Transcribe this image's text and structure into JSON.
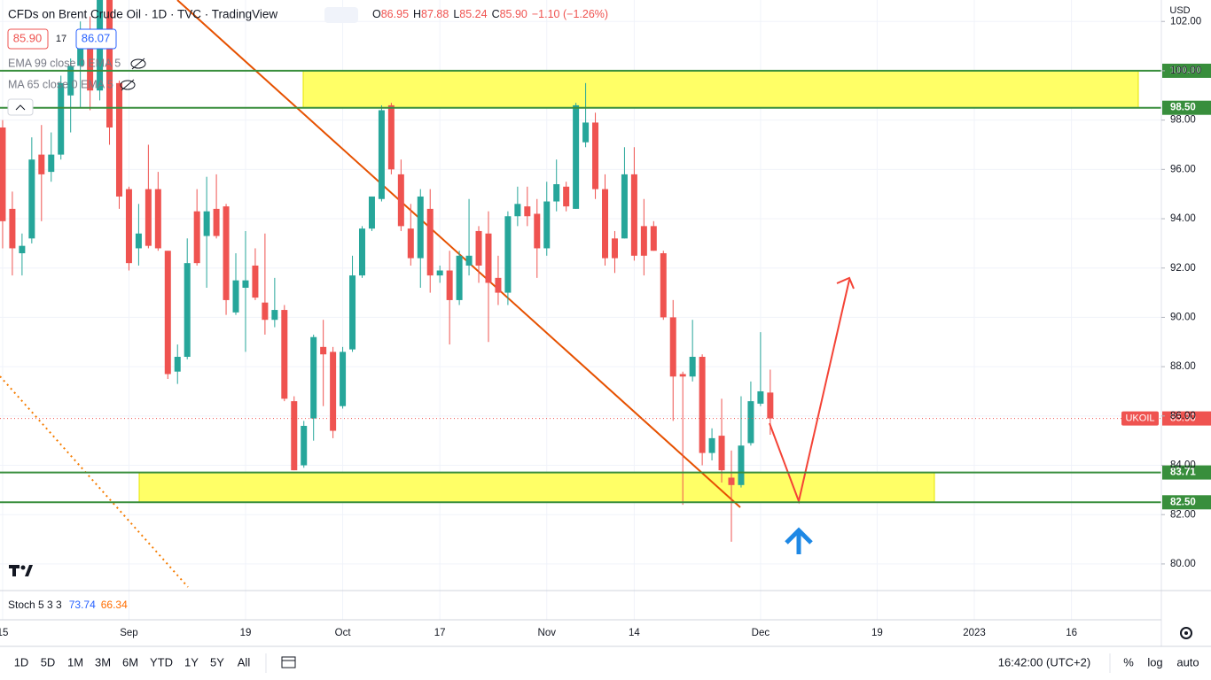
{
  "header": {
    "title": "CFDs on Brent Crude Oil · 1D · TVC · TradingView",
    "ohlc": [
      "O",
      "86.95",
      "H",
      "87.88",
      "L",
      "85.24",
      "C",
      "85.90",
      "−1.10 (−1.26%)"
    ],
    "bid": "85.90",
    "spread": "17",
    "ask": "86.07",
    "indicators": [
      "EMA 99 close 0 EMA 5",
      "MA 65 close 0 EMA 5"
    ],
    "currency": "USD"
  },
  "chart_data": {
    "type": "candlestick",
    "up_color": "#26a69a",
    "down_color": "#ef5350",
    "open": [
      97.7,
      94.4,
      92.6,
      93.2,
      96.6,
      95.9,
      96.6,
      99.0,
      100.2,
      101.5,
      99.2,
      103.0,
      99.5,
      95.2,
      92.8,
      95.2,
      95.2,
      92.7,
      87.8,
      88.4,
      94.3,
      93.3,
      94.4,
      94.5,
      90.2,
      91.2,
      92.1,
      90.6,
      89.9,
      90.3,
      86.6,
      84.0,
      85.9,
      88.8,
      88.6,
      86.4,
      88.7,
      91.7,
      93.6,
      94.8,
      98.6,
      95.8,
      93.6,
      92.4,
      94.4,
      91.7,
      91.9,
      90.7,
      92.1,
      93.5,
      93.4,
      91.6,
      91.0,
      94.1,
      94.5,
      94.2,
      92.8,
      94.7,
      95.3,
      94.4,
      97.1,
      97.9,
      95.2,
      93.2,
      93.2,
      95.8,
      93.7,
      93.7,
      92.6,
      90.0,
      87.7,
      87.6,
      88.4,
      84.5,
      85.2,
      83.5,
      83.2,
      84.9,
      86.5,
      86.95
    ],
    "high": [
      98.0,
      95.1,
      93.4,
      97.3,
      97.8,
      97.5,
      99.8,
      100.5,
      102.0,
      102.2,
      103.5,
      103.5,
      99.6,
      95.3,
      94.6,
      97.0,
      95.9,
      92.7,
      88.9,
      93.2,
      95.2,
      95.7,
      95.8,
      94.6,
      92.6,
      93.5,
      92.8,
      93.4,
      91.6,
      90.5,
      86.8,
      85.8,
      89.3,
      89.9,
      88.8,
      88.8,
      92.5,
      93.7,
      94.9,
      98.6,
      98.7,
      96.4,
      94.6,
      95.2,
      95.2,
      92.1,
      92.7,
      92.7,
      94.8,
      93.7,
      94.3,
      92.5,
      94.3,
      95.3,
      95.3,
      94.8,
      95.5,
      96.4,
      95.5,
      98.7,
      99.5,
      98.3,
      95.8,
      93.5,
      96.9,
      96.9,
      94.8,
      93.9,
      92.7,
      90.7,
      87.8,
      89.9,
      88.5,
      85.5,
      86.7,
      84.6,
      86.8,
      87.4,
      89.4,
      87.88
    ],
    "low": [
      92.8,
      91.7,
      91.7,
      93.0,
      93.9,
      95.5,
      96.4,
      97.5,
      98.5,
      98.4,
      98.8,
      97.0,
      94.4,
      91.9,
      92.1,
      92.8,
      92.7,
      87.5,
      87.3,
      88.3,
      92.1,
      91.2,
      93.2,
      90.1,
      90.1,
      88.6,
      90.7,
      89.3,
      89.6,
      86.6,
      83.8,
      83.9,
      85.0,
      86.4,
      85.1,
      86.3,
      88.6,
      91.6,
      93.5,
      94.7,
      95.8,
      93.5,
      92.1,
      91.2,
      91.0,
      91.4,
      88.9,
      90.5,
      91.7,
      91.4,
      89.0,
      90.5,
      90.5,
      93.7,
      93.7,
      91.6,
      92.5,
      94.3,
      94.3,
      94.4,
      96.9,
      94.8,
      92.1,
      91.8,
      93.2,
      92.3,
      91.7,
      92.7,
      89.9,
      85.8,
      82.4,
      87.4,
      84.0,
      84.2,
      83.3,
      80.9,
      83.1,
      84.8,
      86.4,
      85.24
    ],
    "close": [
      93.9,
      92.8,
      92.9,
      96.4,
      95.8,
      96.6,
      99.5,
      100.2,
      101.5,
      99.2,
      103.0,
      97.7,
      94.9,
      92.2,
      93.4,
      92.9,
      92.8,
      87.7,
      88.4,
      92.2,
      92.2,
      94.3,
      93.3,
      90.7,
      91.5,
      91.5,
      90.8,
      89.9,
      90.3,
      86.7,
      83.8,
      85.6,
      89.2,
      88.5,
      85.4,
      88.6,
      91.7,
      93.6,
      94.9,
      98.4,
      96.0,
      93.7,
      92.4,
      94.9,
      91.7,
      91.9,
      90.7,
      92.5,
      92.5,
      92.1,
      91.4,
      91.0,
      94.1,
      94.6,
      94.1,
      92.8,
      94.7,
      95.4,
      94.5,
      98.6,
      97.9,
      95.2,
      92.4,
      92.4,
      95.8,
      92.5,
      92.5,
      92.7,
      90.0,
      87.6,
      87.6,
      88.4,
      84.5,
      85.1,
      83.8,
      83.2,
      84.8,
      86.6,
      87.0,
      85.9
    ],
    "xlim": [
      -0.27,
      119.25
    ],
    "xticks": [
      {
        "value": 0,
        "label": "15"
      },
      {
        "value": 13,
        "label": "Sep"
      },
      {
        "value": 25,
        "label": "19"
      },
      {
        "value": 35,
        "label": "Oct"
      },
      {
        "value": 45,
        "label": "17"
      },
      {
        "value": 56,
        "label": "Nov"
      },
      {
        "value": 65,
        "label": "14"
      },
      {
        "value": 78,
        "label": "Dec"
      },
      {
        "value": 90,
        "label": "19"
      },
      {
        "value": 100,
        "label": "2023"
      },
      {
        "value": 110,
        "label": "16"
      }
    ],
    "ylim": [
      78.92,
      102.87
    ],
    "yticks": [
      {
        "value": 80,
        "label": "80.00"
      },
      {
        "value": 82,
        "label": "82.00"
      },
      {
        "value": 84,
        "label": "84.00"
      },
      {
        "value": 86,
        "label": "86.00"
      },
      {
        "value": 88,
        "label": "88.00"
      },
      {
        "value": 90,
        "label": "90.00"
      },
      {
        "value": 92,
        "label": "92.00"
      },
      {
        "value": 94,
        "label": "94.00"
      },
      {
        "value": 96,
        "label": "96.00"
      },
      {
        "value": 98,
        "label": "98.00"
      },
      {
        "value": 100,
        "label": "100.00"
      },
      {
        "value": 102,
        "label": "102.00"
      }
    ],
    "grid": true,
    "levels": [
      {
        "value": 100,
        "label": "100.00"
      },
      {
        "value": 98.5,
        "label": "98.50"
      },
      {
        "value": 83.71,
        "label": "83.71"
      },
      {
        "value": 82.5,
        "label": "82.50"
      }
    ],
    "level_color": "#388e3c",
    "zone_color": "#ffff66",
    "last_price": {
      "value": 85.9,
      "label": "85.90",
      "symbol": "UKOIL"
    }
  },
  "stoch": {
    "name": "Stoch 5 3 3",
    "k": "73.74",
    "d": "66.34"
  },
  "footer": {
    "timeframes": [
      "1D",
      "5D",
      "1M",
      "3M",
      "6M",
      "YTD",
      "1Y",
      "5Y",
      "All"
    ],
    "clock": "16:42:00 (UTC+2)",
    "options": [
      "%",
      "log",
      "auto"
    ]
  }
}
